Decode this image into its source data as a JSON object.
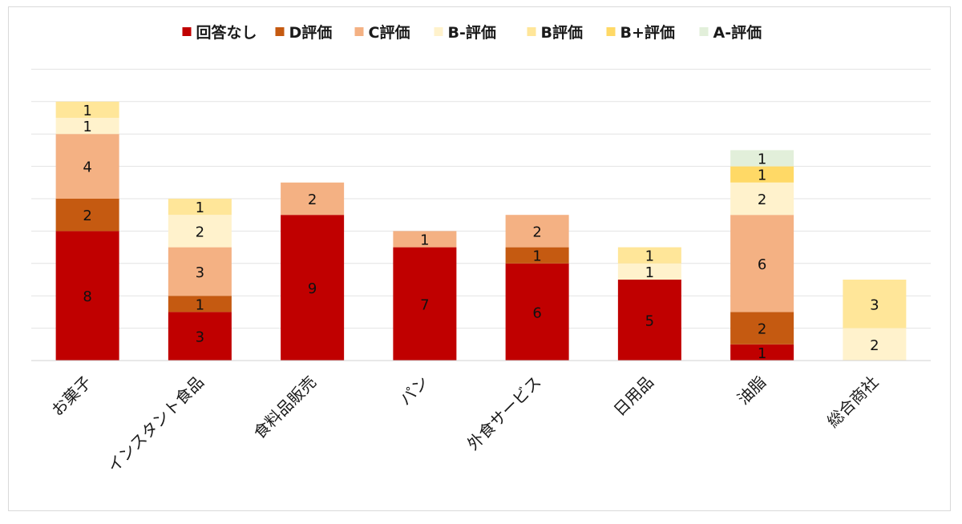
{
  "chart_data": {
    "type": "bar",
    "stacked": true,
    "categories": [
      "お菓子",
      "インスタント食品",
      "食料品販売",
      "パン",
      "外食サービス",
      "日用品",
      "油脂",
      "総合商社"
    ],
    "series": [
      {
        "name": "回答なし",
        "color": "#c00000",
        "values": [
          8,
          3,
          9,
          7,
          6,
          5,
          1,
          0
        ]
      },
      {
        "name": "D評価",
        "color": "#c55a11",
        "values": [
          2,
          1,
          0,
          0,
          1,
          0,
          2,
          0
        ]
      },
      {
        "name": "C評価",
        "color": "#f4b183",
        "values": [
          4,
          3,
          2,
          1,
          2,
          0,
          6,
          0
        ]
      },
      {
        "name": "B-評価",
        "color": "#fff2cc",
        "values": [
          1,
          2,
          0,
          0,
          0,
          1,
          2,
          2
        ]
      },
      {
        "name": "B評価",
        "color": "#ffe699",
        "values": [
          1,
          1,
          0,
          0,
          0,
          1,
          0,
          3
        ]
      },
      {
        "name": "B+評価",
        "color": "#ffd966",
        "values": [
          0,
          0,
          0,
          0,
          0,
          0,
          1,
          0
        ]
      },
      {
        "name": "A-評価",
        "color": "#e2efda",
        "values": [
          0,
          0,
          0,
          0,
          0,
          0,
          1,
          0
        ]
      }
    ],
    "ylim": [
      0,
      18
    ],
    "grid": true,
    "legend": "top"
  }
}
